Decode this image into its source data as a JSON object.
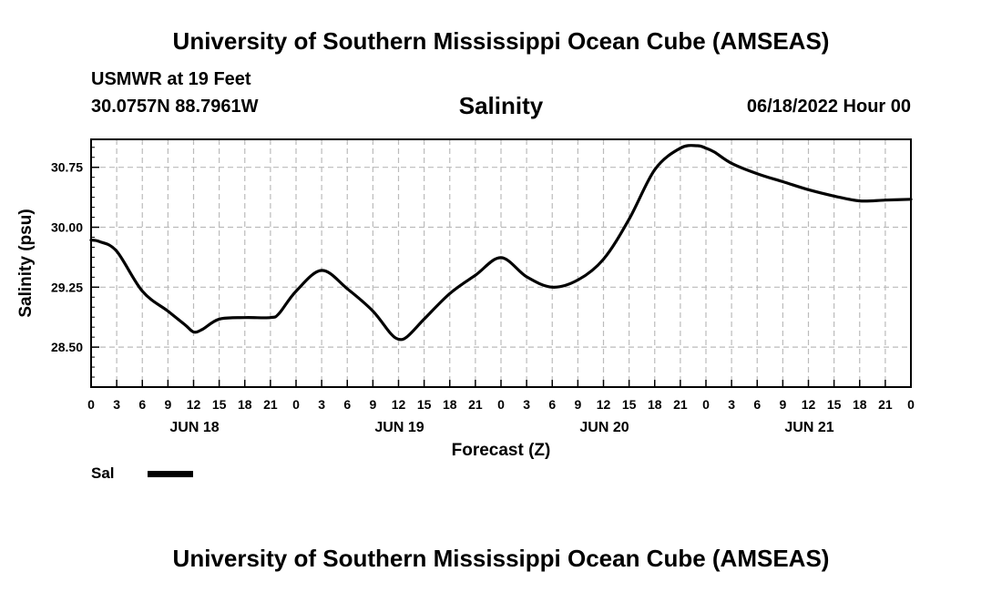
{
  "header": {
    "title": "University of Southern Mississippi Ocean Cube (AMSEAS)",
    "station": "USMWR at 19 Feet",
    "coordinates": "30.0757N  88.7961W",
    "forecast_time": "06/18/2022 Hour 00"
  },
  "footer": {
    "title": "University of Southern Mississippi Ocean Cube (AMSEAS)"
  },
  "legend": {
    "label": "Sal",
    "color": "#000000"
  },
  "chart_data": {
    "type": "line",
    "title": "Salinity",
    "xlabel": "Forecast (Z)",
    "ylabel": "Salinity (psu)",
    "xlim": [
      0,
      96
    ],
    "ylim": [
      28.0,
      31.1
    ],
    "y_ticks": [
      "28.50",
      "29.25",
      "30.00",
      "30.75"
    ],
    "y_tick_values": [
      28.5,
      29.25,
      30.0,
      30.75
    ],
    "x_ticks": [
      0,
      3,
      6,
      9,
      12,
      15,
      18,
      21,
      24,
      27,
      30,
      33,
      36,
      39,
      42,
      45,
      48,
      51,
      54,
      57,
      60,
      63,
      66,
      69,
      72,
      75,
      78,
      81,
      84,
      87,
      90,
      93,
      96
    ],
    "x_tick_labels": [
      "0",
      "3",
      "6",
      "9",
      "12",
      "15",
      "18",
      "21",
      "0",
      "3",
      "6",
      "9",
      "12",
      "15",
      "18",
      "21",
      "0",
      "3",
      "6",
      "9",
      "12",
      "15",
      "18",
      "21",
      "0",
      "3",
      "6",
      "9",
      "12",
      "15",
      "18",
      "21",
      "0"
    ],
    "day_labels": [
      {
        "label": "JUN 18",
        "hour": 12
      },
      {
        "label": "JUN 19",
        "hour": 36
      },
      {
        "label": "JUN 20",
        "hour": 60
      },
      {
        "label": "JUN 21",
        "hour": 84
      }
    ],
    "grid": true,
    "series": [
      {
        "name": "Sal",
        "x": [
          0,
          1,
          3,
          6,
          9,
          11,
          12,
          13,
          15,
          18,
          21,
          22,
          24,
          27,
          30,
          33,
          35,
          36,
          37,
          39,
          42,
          45,
          48,
          51,
          54,
          57,
          60,
          63,
          66,
          69,
          71,
          72,
          73,
          75,
          78,
          81,
          84,
          87,
          90,
          93,
          96
        ],
        "values": [
          29.84,
          29.82,
          29.7,
          29.2,
          28.95,
          28.78,
          28.69,
          28.72,
          28.85,
          28.87,
          28.87,
          28.92,
          29.2,
          29.46,
          29.23,
          28.95,
          28.68,
          28.6,
          28.63,
          28.85,
          29.17,
          29.4,
          29.62,
          29.38,
          29.25,
          29.34,
          29.6,
          30.1,
          30.72,
          30.99,
          31.02,
          30.99,
          30.94,
          30.8,
          30.67,
          30.57,
          30.47,
          30.39,
          30.33,
          30.34,
          30.35
        ]
      }
    ]
  }
}
